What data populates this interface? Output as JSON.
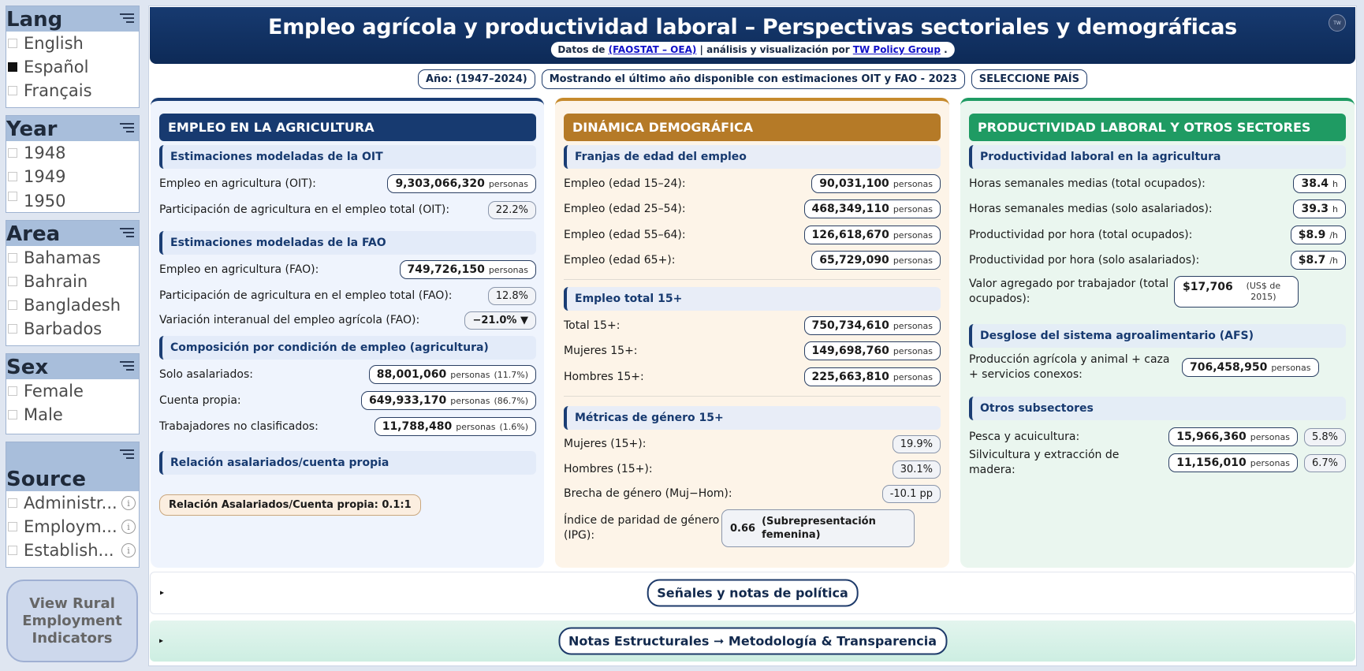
{
  "sidebar": {
    "lang": {
      "title": "Lang",
      "options": [
        {
          "label": "English",
          "checked": false
        },
        {
          "label": "Español",
          "checked": true
        },
        {
          "label": "Français",
          "checked": false
        }
      ]
    },
    "year": {
      "title": "Year",
      "options": [
        "1948",
        "1949",
        "1950"
      ]
    },
    "area": {
      "title": "Area",
      "options": [
        "Bahamas",
        "Bahrain",
        "Bangladesh",
        "Barbados"
      ]
    },
    "sex": {
      "title": "Sex",
      "options": [
        "Female",
        "Male"
      ]
    },
    "source": {
      "title": "Source",
      "options": [
        "Administr...",
        "Employm...",
        "Establish..."
      ]
    },
    "rural_button": "View Rural Employment Indicators"
  },
  "header": {
    "title": "Empleo agrícola y productividad laboral – Perspectivas sectoriales y demográficas",
    "sub_prefix": "Datos de ",
    "sub_link1": "(FAOSTAT – OEA)",
    "sub_mid": " | análisis y visualización por ",
    "sub_link2": "TW Policy Group",
    "sub_suffix": " .",
    "logo_text": "TW"
  },
  "filters": {
    "year": "Año: (1947–2024)",
    "latest": "Mostrando el último año disponible con estimaciones OIT y FAO - 2023",
    "country": "SELECCIONE PAÍS"
  },
  "employment": {
    "heading": "EMPLEO EN LA AGRICULTURA",
    "oit_section": "Estimaciones modeladas de la OIT",
    "oit_emp_label": "Empleo en agricultura (OIT):",
    "oit_emp_value": "9,303,066,320",
    "oit_share_label": "Participación de agricultura en el empleo total (OIT):",
    "oit_share_value": "22.2%",
    "fao_section": "Estimaciones modeladas de la FAO",
    "fao_emp_label": "Empleo en agricultura (FAO):",
    "fao_emp_value": "749,726,150",
    "fao_share_label": "Participación de agricultura en el empleo total (FAO):",
    "fao_share_value": "12.8%",
    "fao_var_label": "Variación interanual del empleo agrícola (FAO):",
    "fao_var_value": "−21.0% ▼",
    "status_section": "Composición por condición de empleo (agricultura)",
    "wage_label": "Solo asalariados:",
    "wage_value": "88,001,060",
    "wage_pct": "(11.7%)",
    "own_label": "Cuenta propia:",
    "own_value": "649,933,170",
    "own_pct": "(86.7%)",
    "uncl_label": "Trabajadores no clasificados:",
    "uncl_value": "11,788,480",
    "uncl_pct": "(1.6%)",
    "ratio_section": "Relación asalariados/cuenta propia",
    "ratio_label": "Relación Asalariados/Cuenta propia:",
    "ratio_value": "0.1:1",
    "unit": "personas"
  },
  "demography": {
    "heading": "DINÁMICA DEMOGRÁFICA",
    "age_section": "Franjas de edad del empleo",
    "age_rows": [
      {
        "label": "Empleo (edad 15–24):",
        "value": "90,031,100"
      },
      {
        "label": "Empleo (edad 25–54):",
        "value": "468,349,110"
      },
      {
        "label": "Empleo (edad 55–64):",
        "value": "126,618,670"
      },
      {
        "label": "Empleo (edad 65+):",
        "value": "65,729,090"
      }
    ],
    "total_section": "Empleo total 15+",
    "total_rows": [
      {
        "label": "Total 15+:",
        "value": "750,734,610"
      },
      {
        "label": "Mujeres 15+:",
        "value": "149,698,760"
      },
      {
        "label": "Hombres 15+:",
        "value": "225,663,810"
      }
    ],
    "gender_section": "Métricas de género 15+",
    "women_label": "Mujeres (15+):",
    "women_value": "19.9%",
    "men_label": "Hombres (15+):",
    "men_value": "30.1%",
    "gap_label": "Brecha de género (Muj−Hom):",
    "gap_value": "-10.1 pp",
    "gpi_label": "Índice de paridad de género (IPG):",
    "gpi_value": "0.66",
    "gpi_note": "(Subrepresentación femenina)",
    "unit": "personas"
  },
  "productivity": {
    "heading": "PRODUCTIVIDAD LABORAL Y OTROS SECTORES",
    "prod_section": "Productividad laboral en la agricultura",
    "hours_total_label": "Horas semanales medias (total ocupados):",
    "hours_total_value": "38.4",
    "hours_wage_label": "Horas semanales medias (solo asalariados):",
    "hours_wage_value": "39.3",
    "hours_unit": "h",
    "prodh_total_label": "Productividad por hora (total ocupados):",
    "prodh_total_value": "$8.9",
    "prodh_wage_label": "Productividad por hora (solo asalariados):",
    "prodh_wage_value": "$8.7",
    "prodh_unit": "/h",
    "va_label": "Valor agregado por trabajador (total ocupados):",
    "va_value": "$17,706",
    "va_unit": "(US$ de 2015)",
    "afs_section": "Desglose del sistema agroalimentario (AFS)",
    "afs_label": "Producción agrícola y animal + caza + servicios conexos:",
    "afs_value": "706,458,950",
    "other_section": "Otros subsectores",
    "fish_label": "Pesca y acuicultura:",
    "fish_value": "15,966,360",
    "fish_pct": "5.8%",
    "forest_label": "Silvicultura y extracción de madera:",
    "forest_value": "11,156,010",
    "forest_pct": "6.7%",
    "unit": "personas"
  },
  "footer": {
    "policy_notes": "Señales y notas de política",
    "structural_notes": "Notas Estructurales ➞ Metodología & Transparencia",
    "toggle": "▸"
  },
  "colors": {
    "navy": "#173a70",
    "amber": "#b57a27",
    "green": "#1f9b63",
    "slicer_header": "#a8bedb"
  }
}
